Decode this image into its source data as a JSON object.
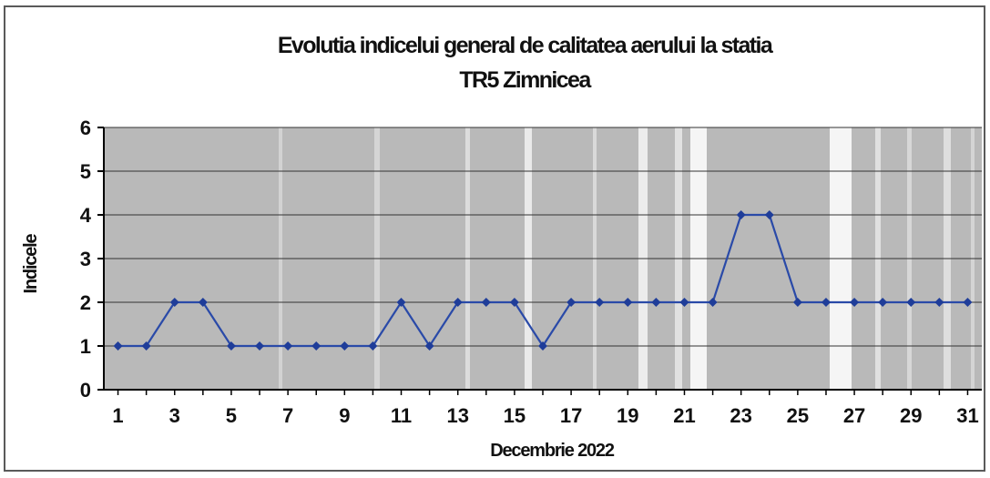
{
  "chart_data": {
    "type": "line",
    "title_line1": "Evolutia indicelui general de calitatea aerului la statia",
    "title_line2": "TR5 Zimnicea",
    "xlabel": "Decembrie 2022",
    "ylabel": "Indicele",
    "ylim": [
      0,
      6
    ],
    "yticks": [
      0,
      1,
      2,
      3,
      4,
      5,
      6
    ],
    "x": [
      1,
      2,
      3,
      4,
      5,
      6,
      7,
      8,
      9,
      10,
      11,
      12,
      13,
      14,
      15,
      16,
      17,
      18,
      19,
      20,
      21,
      22,
      23,
      24,
      25,
      26,
      27,
      28,
      29,
      30,
      31
    ],
    "x_tick_labels": [
      "1",
      "3",
      "5",
      "7",
      "9",
      "11",
      "13",
      "15",
      "17",
      "19",
      "21",
      "23",
      "25",
      "27",
      "29",
      "31"
    ],
    "series": [
      {
        "values": [
          1,
          1,
          2,
          2,
          1,
          1,
          1,
          1,
          1,
          1,
          2,
          1,
          2,
          2,
          2,
          1,
          2,
          2,
          2,
          2,
          2,
          2,
          4,
          4,
          2,
          2,
          2,
          2,
          2,
          2,
          2
        ]
      }
    ],
    "grid": true,
    "legend": "none",
    "colors": {
      "line": "#2a4aa8",
      "marker": "#1f3d99",
      "plot_bg": "#b9b9b9",
      "grid": "#333333",
      "axis": "#000000"
    }
  }
}
